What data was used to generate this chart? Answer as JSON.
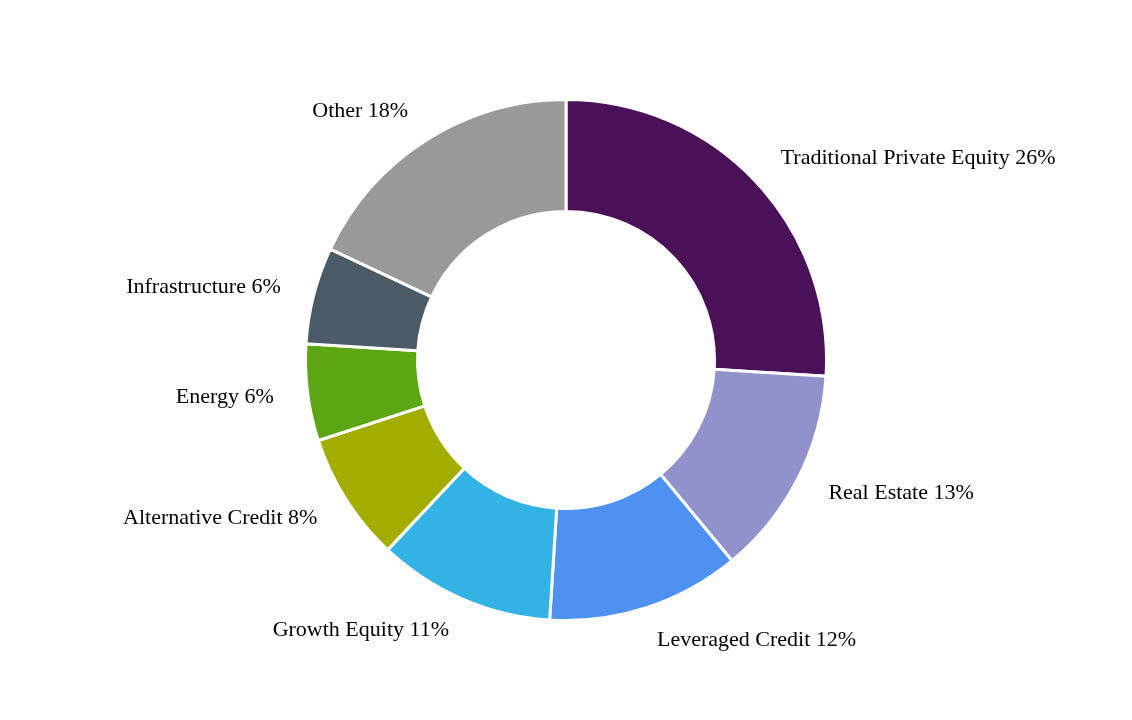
{
  "chart_data": {
    "type": "donut",
    "categories": [
      "Traditional Private Equity",
      "Real Estate",
      "Leveraged Credit",
      "Growth Equity",
      "Alternative Credit",
      "Energy",
      "Infrastructure",
      "Other"
    ],
    "values": [
      26,
      13,
      12,
      11,
      8,
      6,
      6,
      18
    ],
    "value_labels": [
      "26%",
      "13%",
      "12%",
      "11%",
      "8%",
      "6%",
      "6%",
      "18%"
    ],
    "colors": [
      "#4a1158",
      "#9191cc",
      "#4f91f0",
      "#33b2e6",
      "#a3ad00",
      "#5ca614",
      "#4a5a66",
      "#999999"
    ],
    "legend": false
  }
}
